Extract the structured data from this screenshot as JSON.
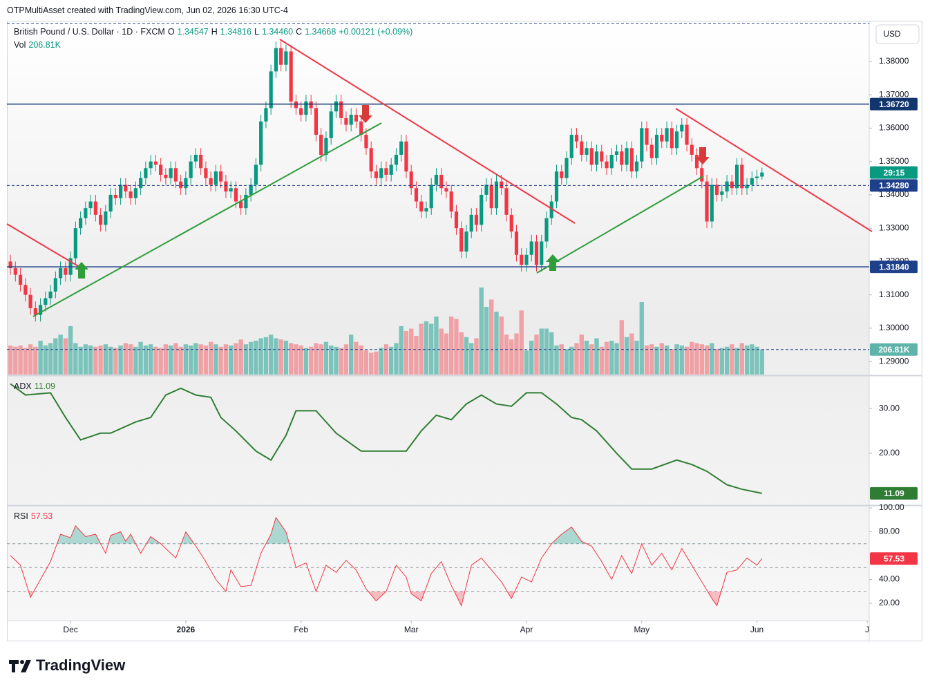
{
  "header": "OTPMultiAsset created with TradingView.com, Jun 02, 2026 16:30 UTC-4",
  "currency_button": "USD",
  "brand": "TradingView",
  "chart_data": [
    {
      "type": "candlestick",
      "title": "British Pound / U.S. Dollar · 1D · FXCM",
      "ohlc_legend": [
        {
          "key": "O",
          "text": "1.34547"
        },
        {
          "key": "H",
          "text": "1.34816"
        },
        {
          "key": "L",
          "text": "1.34460"
        },
        {
          "key": "C",
          "text": "1.34668"
        }
      ],
      "change": "+0.00121 (+0.09%)",
      "open": [
        1.32,
        1.318,
        1.316,
        1.313,
        1.31,
        1.306,
        1.304,
        1.307,
        1.309,
        1.311,
        1.315,
        1.318,
        1.316,
        1.321,
        1.33,
        1.333,
        1.336,
        1.338,
        1.334,
        1.331,
        1.335,
        1.34,
        1.339,
        1.343,
        1.341,
        1.339,
        1.342,
        1.345,
        1.348,
        1.35,
        1.349,
        1.346,
        1.345,
        1.348,
        1.344,
        1.342,
        1.345,
        1.35,
        1.352,
        1.348,
        1.345,
        1.343,
        1.347,
        1.344,
        1.341,
        1.342,
        1.338,
        1.336,
        1.34,
        1.343,
        1.349,
        1.362,
        1.366,
        1.377,
        1.384,
        1.379,
        1.383,
        1.368,
        1.366,
        1.364,
        1.368,
        1.366,
        1.358,
        1.352,
        1.357,
        1.365,
        1.368,
        1.363,
        1.361,
        1.364,
        1.362,
        1.358,
        1.354,
        1.347,
        1.345,
        1.348,
        1.346,
        1.349,
        1.352,
        1.356,
        1.347,
        1.342,
        1.338,
        1.335,
        1.336,
        1.343,
        1.346,
        1.342,
        1.341,
        1.335,
        1.33,
        1.323,
        1.329,
        1.334,
        1.331,
        1.34,
        1.343,
        1.336,
        1.344,
        1.342,
        1.334,
        1.329,
        1.322,
        1.319,
        1.322,
        1.326,
        1.319,
        1.326,
        1.333,
        1.338,
        1.347,
        1.345,
        1.351,
        1.358,
        1.356,
        1.352,
        1.354,
        1.349,
        1.353,
        1.35,
        1.348,
        1.352,
        1.353,
        1.349,
        1.354,
        1.347,
        1.35,
        1.36,
        1.355,
        1.351,
        1.358,
        1.356,
        1.36,
        1.354,
        1.359,
        1.361,
        1.355,
        1.352,
        1.348,
        1.344,
        1.332,
        1.343,
        1.34,
        1.341,
        1.344,
        1.342,
        1.349,
        1.342,
        1.343,
        1.345,
        1.34547
      ],
      "high": [
        1.322,
        1.32,
        1.318,
        1.315,
        1.312,
        1.308,
        1.309,
        1.311,
        1.313,
        1.317,
        1.32,
        1.32,
        1.323,
        1.332,
        1.335,
        1.338,
        1.34,
        1.34,
        1.336,
        1.337,
        1.342,
        1.342,
        1.345,
        1.345,
        1.343,
        1.344,
        1.347,
        1.35,
        1.352,
        1.352,
        1.351,
        1.348,
        1.35,
        1.35,
        1.346,
        1.347,
        1.352,
        1.354,
        1.354,
        1.35,
        1.347,
        1.349,
        1.349,
        1.346,
        1.344,
        1.344,
        1.34,
        1.342,
        1.345,
        1.351,
        1.364,
        1.368,
        1.379,
        1.386,
        1.386,
        1.385,
        1.385,
        1.37,
        1.368,
        1.37,
        1.37,
        1.368,
        1.36,
        1.359,
        1.367,
        1.37,
        1.37,
        1.365,
        1.366,
        1.366,
        1.364,
        1.36,
        1.356,
        1.349,
        1.35,
        1.35,
        1.351,
        1.354,
        1.358,
        1.358,
        1.349,
        1.344,
        1.34,
        1.338,
        1.345,
        1.348,
        1.348,
        1.344,
        1.343,
        1.337,
        1.332,
        1.331,
        1.336,
        1.336,
        1.342,
        1.345,
        1.345,
        1.346,
        1.346,
        1.344,
        1.336,
        1.331,
        1.324,
        1.324,
        1.328,
        1.328,
        1.328,
        1.335,
        1.34,
        1.349,
        1.349,
        1.353,
        1.36,
        1.36,
        1.358,
        1.356,
        1.356,
        1.355,
        1.355,
        1.352,
        1.354,
        1.355,
        1.355,
        1.356,
        1.356,
        1.352,
        1.362,
        1.362,
        1.357,
        1.36,
        1.36,
        1.362,
        1.362,
        1.361,
        1.363,
        1.363,
        1.357,
        1.354,
        1.35,
        1.346,
        1.345,
        1.345,
        1.343,
        1.346,
        1.346,
        1.351,
        1.351,
        1.345,
        1.347,
        1.3475,
        1.34816
      ],
      "low": [
        1.316,
        1.314,
        1.311,
        1.308,
        1.304,
        1.302,
        1.302,
        1.305,
        1.307,
        1.309,
        1.313,
        1.314,
        1.314,
        1.319,
        1.328,
        1.331,
        1.334,
        1.332,
        1.329,
        1.329,
        1.333,
        1.337,
        1.337,
        1.339,
        1.337,
        1.337,
        1.34,
        1.343,
        1.346,
        1.347,
        1.344,
        1.343,
        1.343,
        1.342,
        1.34,
        1.34,
        1.343,
        1.348,
        1.346,
        1.343,
        1.341,
        1.341,
        1.342,
        1.339,
        1.339,
        1.336,
        1.334,
        1.334,
        1.338,
        1.341,
        1.347,
        1.36,
        1.364,
        1.375,
        1.377,
        1.377,
        1.366,
        1.364,
        1.362,
        1.362,
        1.364,
        1.356,
        1.35,
        1.35,
        1.355,
        1.363,
        1.361,
        1.359,
        1.359,
        1.36,
        1.356,
        1.352,
        1.345,
        1.343,
        1.343,
        1.344,
        1.344,
        1.347,
        1.35,
        1.345,
        1.34,
        1.336,
        1.333,
        1.333,
        1.334,
        1.341,
        1.34,
        1.339,
        1.333,
        1.328,
        1.321,
        1.321,
        1.327,
        1.329,
        1.329,
        1.338,
        1.334,
        1.334,
        1.34,
        1.332,
        1.327,
        1.32,
        1.317,
        1.317,
        1.32,
        1.317,
        1.317,
        1.324,
        1.331,
        1.336,
        1.343,
        1.343,
        1.349,
        1.354,
        1.35,
        1.35,
        1.347,
        1.347,
        1.348,
        1.346,
        1.346,
        1.35,
        1.347,
        1.347,
        1.345,
        1.345,
        1.348,
        1.353,
        1.349,
        1.349,
        1.354,
        1.354,
        1.352,
        1.352,
        1.357,
        1.353,
        1.35,
        1.346,
        1.342,
        1.33,
        1.33,
        1.338,
        1.338,
        1.339,
        1.34,
        1.34,
        1.34,
        1.34,
        1.341,
        1.343,
        1.3446
      ],
      "close": [
        1.318,
        1.316,
        1.313,
        1.31,
        1.306,
        1.304,
        1.307,
        1.309,
        1.311,
        1.315,
        1.318,
        1.316,
        1.321,
        1.33,
        1.333,
        1.336,
        1.338,
        1.334,
        1.331,
        1.335,
        1.34,
        1.339,
        1.343,
        1.341,
        1.339,
        1.342,
        1.345,
        1.348,
        1.35,
        1.349,
        1.346,
        1.345,
        1.348,
        1.344,
        1.342,
        1.345,
        1.35,
        1.352,
        1.348,
        1.345,
        1.343,
        1.347,
        1.344,
        1.341,
        1.342,
        1.338,
        1.336,
        1.34,
        1.343,
        1.349,
        1.362,
        1.366,
        1.377,
        1.384,
        1.379,
        1.383,
        1.368,
        1.366,
        1.364,
        1.368,
        1.366,
        1.358,
        1.352,
        1.357,
        1.365,
        1.368,
        1.363,
        1.361,
        1.364,
        1.362,
        1.358,
        1.354,
        1.347,
        1.345,
        1.348,
        1.346,
        1.349,
        1.352,
        1.356,
        1.347,
        1.342,
        1.338,
        1.335,
        1.336,
        1.343,
        1.346,
        1.342,
        1.341,
        1.335,
        1.33,
        1.323,
        1.329,
        1.334,
        1.331,
        1.34,
        1.343,
        1.336,
        1.344,
        1.342,
        1.334,
        1.329,
        1.322,
        1.319,
        1.322,
        1.326,
        1.319,
        1.326,
        1.333,
        1.338,
        1.347,
        1.345,
        1.351,
        1.358,
        1.356,
        1.352,
        1.354,
        1.349,
        1.353,
        1.35,
        1.348,
        1.352,
        1.353,
        1.349,
        1.354,
        1.347,
        1.35,
        1.36,
        1.355,
        1.351,
        1.358,
        1.356,
        1.36,
        1.354,
        1.359,
        1.361,
        1.355,
        1.352,
        1.348,
        1.344,
        1.332,
        1.343,
        1.34,
        1.341,
        1.344,
        1.342,
        1.349,
        1.342,
        1.343,
        1.345,
        1.34547,
        1.34668
      ],
      "up_color": "#089981",
      "down_color": "#f23645",
      "xlim": [
        -0.7,
        171.4
      ],
      "ylim": [
        1.2861,
        1.3922
      ],
      "yticks": [
        {
          "value": 1.29,
          "label": "1.29000"
        },
        {
          "value": 1.3,
          "label": "1.30000"
        },
        {
          "value": 1.31,
          "label": "1.31000"
        },
        {
          "value": 1.32,
          "label": "1.32000"
        },
        {
          "value": 1.33,
          "label": "1.33000"
        },
        {
          "value": 1.34,
          "label": "1.34000"
        },
        {
          "value": 1.35,
          "label": "1.35000"
        },
        {
          "value": 1.36,
          "label": "1.36000"
        },
        {
          "value": 1.37,
          "label": "1.37000"
        },
        {
          "value": 1.38,
          "label": "1.38000"
        }
      ],
      "hlines": [
        {
          "value": 1.3914,
          "style": "dashed",
          "color": "#1e3f8a"
        },
        {
          "value": 1.3672,
          "label": "1.36720",
          "style": "solid",
          "color": "#13356e"
        },
        {
          "value": 1.3428,
          "label": "1.34280",
          "style": "dashed",
          "color": "#1e3f8a"
        },
        {
          "value": 1.3184,
          "label": "1.31840",
          "style": "solid",
          "color": "#1e3f8a"
        }
      ],
      "countdown": "29:15"
    },
    {
      "type": "bar",
      "name": "Vol",
      "last_label": "206.81K",
      "values": [
        240,
        230,
        240,
        220,
        250,
        230,
        280,
        240,
        260,
        300,
        330,
        300,
        400,
        260,
        230,
        250,
        240,
        230,
        240,
        250,
        230,
        220,
        240,
        260,
        250,
        230,
        270,
        240,
        250,
        230,
        220,
        250,
        240,
        260,
        230,
        250,
        240,
        260,
        250,
        240,
        270,
        250,
        230,
        250,
        240,
        260,
        290,
        250,
        270,
        280,
        300,
        310,
        330,
        300,
        290,
        280,
        260,
        250,
        240,
        220,
        230,
        260,
        250,
        270,
        240,
        230,
        220,
        250,
        330,
        270,
        240,
        200,
        180,
        190,
        220,
        250,
        230,
        260,
        400,
        360,
        380,
        320,
        420,
        440,
        420,
        480,
        380,
        340,
        480,
        460,
        350,
        310,
        260,
        300,
        720,
        560,
        620,
        520,
        480,
        330,
        290,
        340,
        530,
        200,
        280,
        330,
        380,
        380,
        350,
        240,
        250,
        210,
        230,
        260,
        330,
        280,
        250,
        300,
        230,
        270,
        280,
        260,
        450,
        310,
        340,
        280,
        600,
        240,
        250,
        230,
        260,
        240,
        210,
        250,
        240,
        230,
        270,
        260,
        250,
        240,
        260,
        210,
        220,
        230,
        250,
        220,
        260,
        240,
        250,
        230,
        206.81
      ],
      "up_color": "#7cc4bb",
      "down_color": "#efa1a5",
      "badge_color": "#5fb4aa",
      "xlim": [
        -0.7,
        171.4
      ],
      "ylim": [
        0,
        2925
      ]
    },
    {
      "type": "line",
      "name": "ADX",
      "color": "#2e7d32",
      "x": [
        0,
        3,
        8,
        11,
        14,
        18,
        20,
        25,
        28,
        31,
        34,
        37,
        40,
        42,
        45,
        49,
        52,
        55,
        57,
        61,
        65,
        70,
        74,
        79,
        82,
        85,
        88,
        91,
        94,
        97,
        100,
        103,
        106,
        109,
        112,
        114,
        117,
        121,
        124,
        128,
        133,
        136,
        139,
        143,
        146,
        150
      ],
      "values": [
        35.5,
        33,
        33.5,
        28,
        23,
        24.5,
        24.5,
        27,
        28,
        33,
        34.5,
        33,
        32.5,
        28,
        25,
        20.5,
        18.5,
        24,
        29.5,
        29.5,
        24.5,
        20.5,
        20.5,
        20.5,
        25,
        28.5,
        27.5,
        31,
        33,
        31,
        30.5,
        33.5,
        33.5,
        31,
        28,
        27.5,
        25,
        20,
        16.5,
        16.5,
        18.5,
        17.5,
        16,
        13,
        12,
        11.09
      ],
      "xlim": [
        -0.7,
        171.4
      ],
      "ylim": [
        8.6,
        37.1
      ],
      "yticks": [
        {
          "value": 20,
          "label": "20.00"
        },
        {
          "value": 30,
          "label": "30.00"
        }
      ]
    },
    {
      "type": "line",
      "name": "RSI",
      "color": "#f23645",
      "x": [
        0,
        2,
        4,
        6,
        8,
        10,
        12,
        13,
        15,
        17,
        19,
        20,
        22,
        23,
        24,
        26,
        28,
        30,
        33,
        35,
        37,
        39,
        41,
        43,
        44,
        46,
        48,
        50,
        52,
        53,
        55,
        57,
        59,
        61,
        63,
        65,
        67,
        69,
        71,
        73,
        75,
        77,
        79,
        80,
        82,
        84,
        86,
        88,
        90,
        92,
        94,
        96,
        98,
        100,
        102,
        104,
        106,
        108,
        110,
        112,
        114,
        116,
        118,
        120,
        122,
        124,
        126,
        128,
        130,
        132,
        134,
        136,
        138,
        140,
        141,
        143,
        145,
        147,
        149,
        150
      ],
      "values": [
        60,
        52,
        25,
        40,
        55,
        78,
        75,
        85,
        76,
        78,
        62,
        77,
        80,
        72,
        78,
        62,
        76,
        70,
        58,
        80,
        68,
        55,
        40,
        30,
        48,
        34,
        35,
        62,
        78,
        92,
        80,
        50,
        54,
        30,
        52,
        46,
        56,
        48,
        32,
        22,
        30,
        52,
        42,
        28,
        22,
        45,
        55,
        35,
        18,
        52,
        58,
        48,
        38,
        24,
        42,
        38,
        58,
        70,
        78,
        84,
        72,
        68,
        55,
        40,
        60,
        45,
        70,
        52,
        62,
        48,
        66,
        52,
        38,
        24,
        18,
        46,
        48,
        58,
        52,
        57.53
      ],
      "levels": [
        70,
        50,
        30
      ],
      "overbought_color": "#089981",
      "oversold_color": "#f23645",
      "xlim": [
        -0.7,
        171.4
      ],
      "ylim": [
        5.5,
        101.2
      ],
      "yticks": [
        {
          "value": 20,
          "label": "20.00"
        },
        {
          "value": 40,
          "label": "40.00"
        },
        {
          "value": 80,
          "label": "80.00"
        },
        {
          "value": 100,
          "label": "100.00"
        }
      ],
      "xticks": [
        {
          "value": 12,
          "label": "Dec"
        },
        {
          "value": 35,
          "label": "2026",
          "bold": true
        },
        {
          "value": 58,
          "label": "Feb"
        },
        {
          "value": 80,
          "label": "Mar"
        },
        {
          "value": 103,
          "label": "Apr"
        },
        {
          "value": 126,
          "label": "May"
        },
        {
          "value": 149,
          "label": "Jun"
        },
        {
          "value": 171,
          "label": "J"
        }
      ]
    }
  ]
}
